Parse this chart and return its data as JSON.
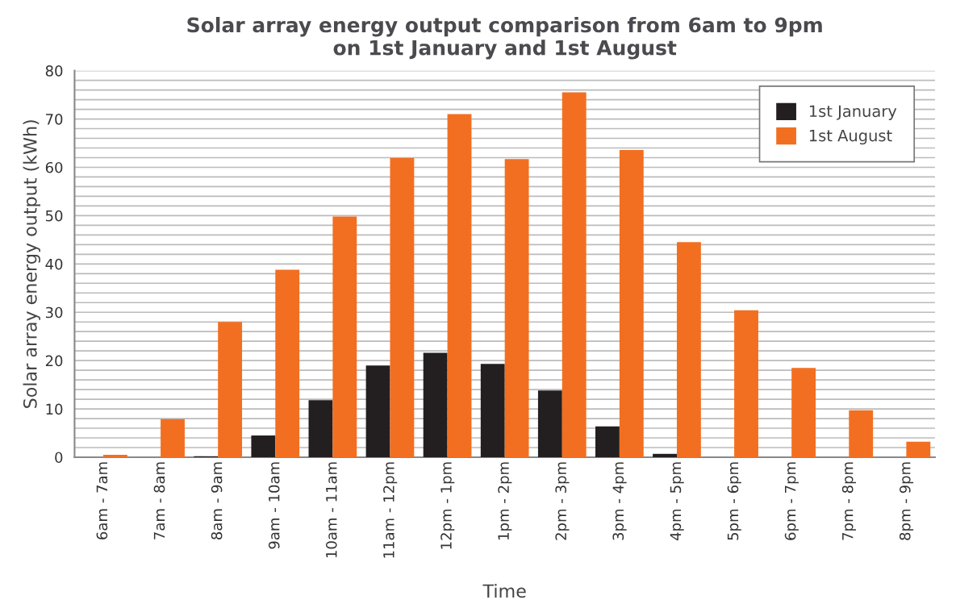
{
  "chart_data": {
    "type": "bar",
    "title": "Solar array energy output comparison from 6am to 9pm\non 1st January and 1st August",
    "xlabel": "Time",
    "ylabel": "Solar array energy output (kWh)",
    "categories": [
      "6am - 7am",
      "7am - 8am",
      "8am - 9am",
      "9am - 10am",
      "10am - 11am",
      "11am - 12pm",
      "12pm - 1pm",
      "1pm - 2pm",
      "2pm - 3pm",
      "3pm - 4pm",
      "4pm - 5pm",
      "5pm - 6pm",
      "6pm - 7pm",
      "7pm - 8pm",
      "8pm - 9pm"
    ],
    "series": [
      {
        "name": "1st January",
        "color": "#231f20",
        "values": [
          0,
          0,
          0.2,
          4.5,
          11.8,
          19,
          21.6,
          19.3,
          13.8,
          6.4,
          0.7,
          0,
          0,
          0,
          0
        ]
      },
      {
        "name": "1st August",
        "color": "#f26f21",
        "values": [
          0.5,
          7.9,
          28,
          38.8,
          49.8,
          61.9,
          71,
          61.7,
          75.5,
          63.6,
          44.5,
          30.4,
          18.5,
          9.7,
          3.2
        ]
      }
    ],
    "ylim": [
      0,
      80
    ],
    "yticks": [
      0,
      {
        "value": 2,
        "label": null
      },
      {
        "value": 4,
        "label": null
      },
      {
        "value": 6,
        "label": null
      },
      {
        "value": 8,
        "label": null
      },
      10,
      {
        "value": 12,
        "label": null
      },
      {
        "value": 14,
        "label": null
      },
      {
        "value": 16,
        "label": null
      },
      {
        "value": 18,
        "label": null
      },
      20,
      {
        "value": 22,
        "label": null
      },
      {
        "value": 24,
        "label": null
      },
      {
        "value": 26,
        "label": null
      },
      {
        "value": 28,
        "label": null
      },
      30,
      {
        "value": 32,
        "label": null
      },
      {
        "value": 34,
        "label": null
      },
      {
        "value": 36,
        "label": null
      },
      {
        "value": 38,
        "label": null
      },
      40,
      {
        "value": 42,
        "label": null
      },
      {
        "value": 44,
        "label": null
      },
      {
        "value": 46,
        "label": null
      },
      {
        "value": 48,
        "label": null
      },
      50,
      {
        "value": 52,
        "label": null
      },
      {
        "value": 54,
        "label": null
      },
      {
        "value": 56,
        "label": null
      },
      {
        "value": 58,
        "label": null
      },
      60,
      {
        "value": 62,
        "label": null
      },
      {
        "value": 64,
        "label": null
      },
      {
        "value": 66,
        "label": null
      },
      {
        "value": 68,
        "label": null
      },
      70,
      {
        "value": 72,
        "label": null
      },
      {
        "value": 74,
        "label": null
      },
      {
        "value": 76,
        "label": null
      },
      {
        "value": 78,
        "label": null
      },
      80
    ],
    "grid": "y",
    "legend": "top right"
  }
}
